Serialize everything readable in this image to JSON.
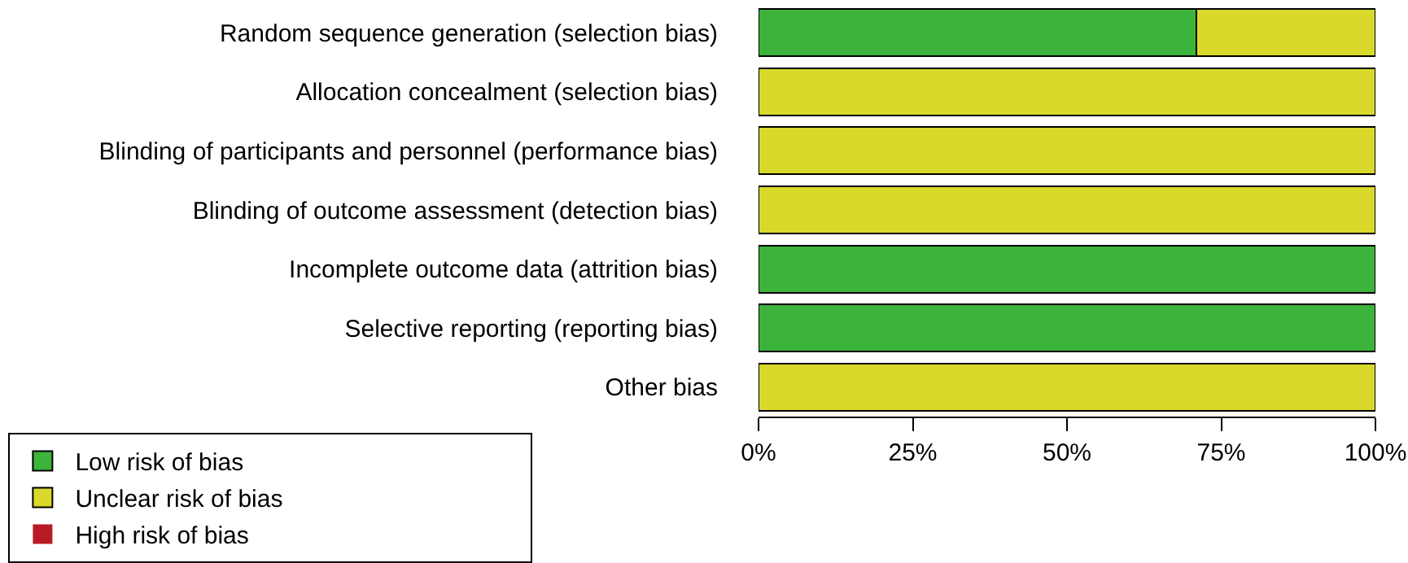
{
  "chart_data": {
    "type": "bar",
    "orientation": "horizontal",
    "stacked": true,
    "categories": [
      "Random sequence generation (selection bias)",
      "Allocation concealment (selection bias)",
      "Blinding of participants and personnel (performance bias)",
      "Blinding of outcome assessment (detection bias)",
      "Incomplete outcome data (attrition bias)",
      "Selective reporting (reporting bias)",
      "Other bias"
    ],
    "series": [
      {
        "name": "Low risk of bias",
        "color": "#3cb43c",
        "values": [
          71,
          0,
          0,
          0,
          100,
          100,
          0
        ]
      },
      {
        "name": "Unclear risk of bias",
        "color": "#d9d92b",
        "values": [
          29,
          100,
          100,
          100,
          0,
          0,
          100
        ]
      },
      {
        "name": "High risk of bias",
        "color": "#b71c24",
        "values": [
          0,
          0,
          0,
          0,
          0,
          0,
          0
        ]
      }
    ],
    "xlim": [
      0,
      100
    ],
    "xticks": [
      {
        "value": 0,
        "label": "0%"
      },
      {
        "value": 25,
        "label": "25%"
      },
      {
        "value": 50,
        "label": "50%"
      },
      {
        "value": 75,
        "label": "75%"
      },
      {
        "value": 100,
        "label": "100%"
      }
    ],
    "grid": false,
    "legend": "bottom"
  }
}
